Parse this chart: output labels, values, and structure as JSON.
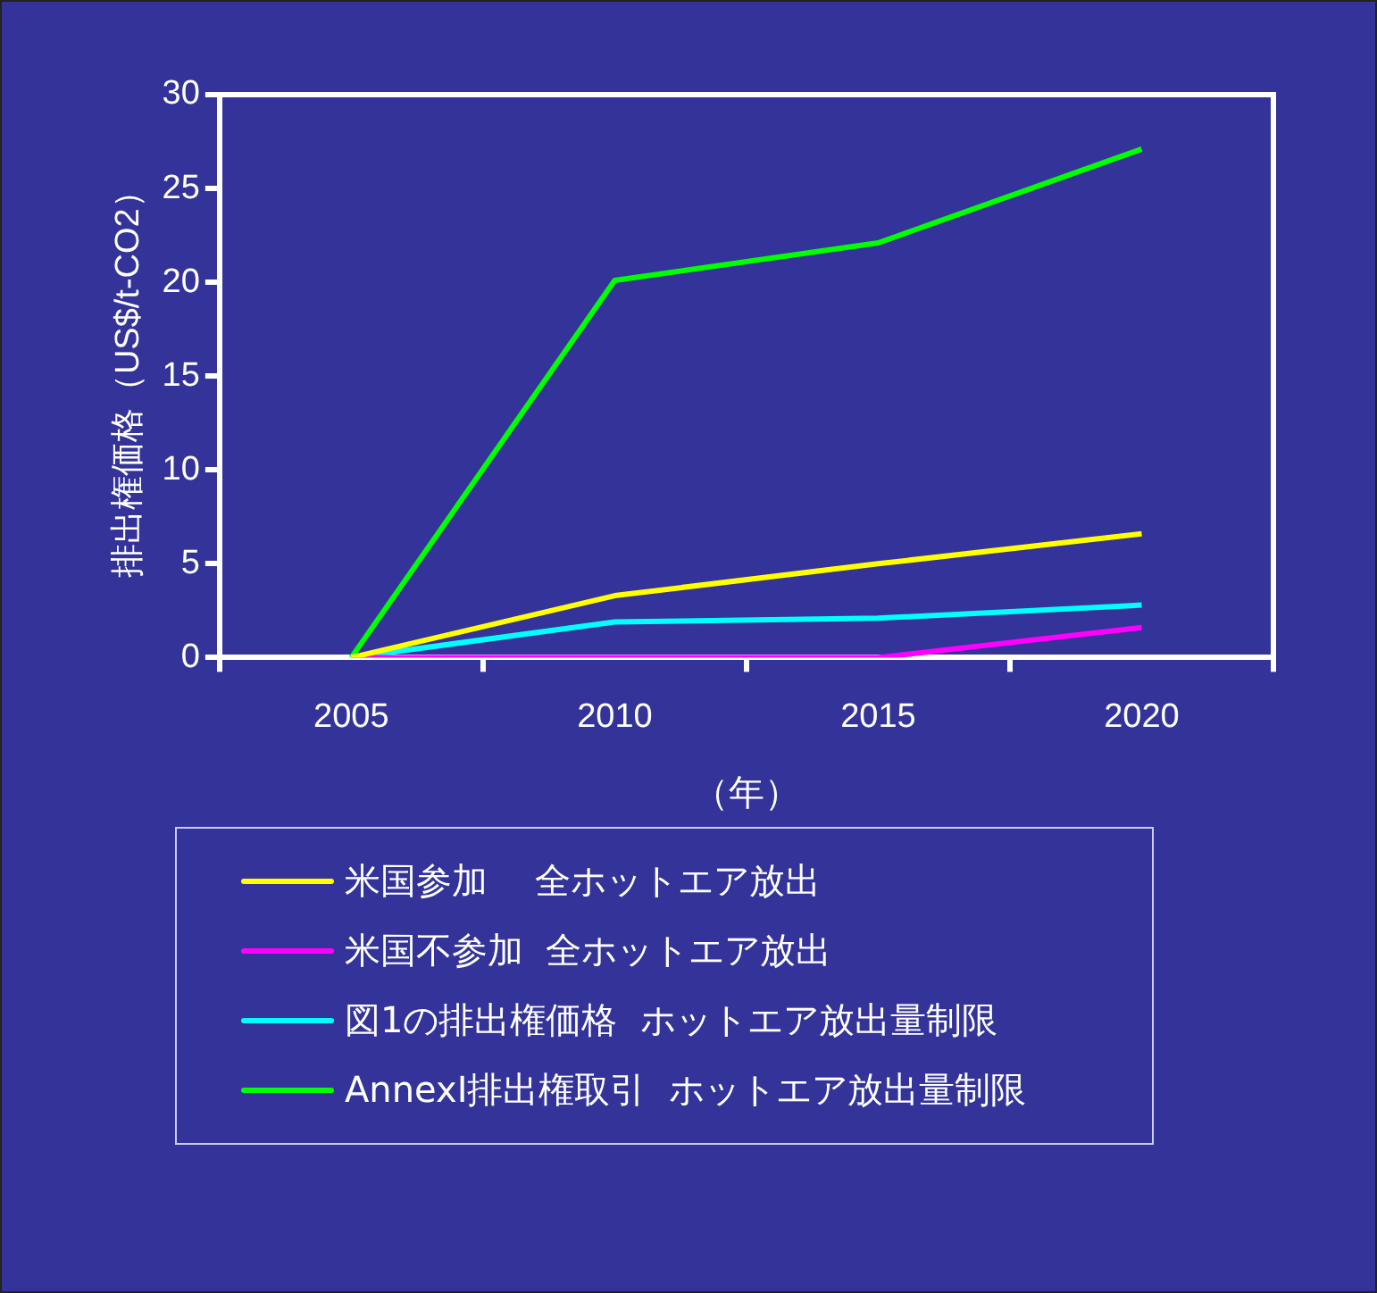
{
  "chart_data": {
    "type": "line",
    "xlabel": "（年）",
    "ylabel": "排出権価格（US$/t-CO2）",
    "categories": [
      "2005",
      "2010",
      "2015",
      "2020"
    ],
    "ylim": [
      0,
      30
    ],
    "yticks": [
      0,
      5,
      10,
      15,
      20,
      25,
      30
    ],
    "grid": false,
    "legend": "bottom",
    "marker": "none",
    "line_style": "solid",
    "series": [
      {
        "name": "米国参加　 全ホットエア放出",
        "color": "#ffff00",
        "values": [
          0,
          3.3,
          5,
          6.6
        ]
      },
      {
        "name": "米国不参加  全ホットエア放出",
        "color": "#ff00ff",
        "values": [
          0,
          0,
          0,
          1.6
        ]
      },
      {
        "name": "図1の排出権価格  ホットエア放出量制限",
        "color": "#00ffff",
        "values": [
          0,
          1.9,
          2.1,
          2.8
        ]
      },
      {
        "name": "AnnexI排出権取引  ホットエア放出量制限",
        "color": "#00ff00",
        "values": [
          0,
          20.1,
          22.1,
          27.1
        ]
      }
    ]
  }
}
